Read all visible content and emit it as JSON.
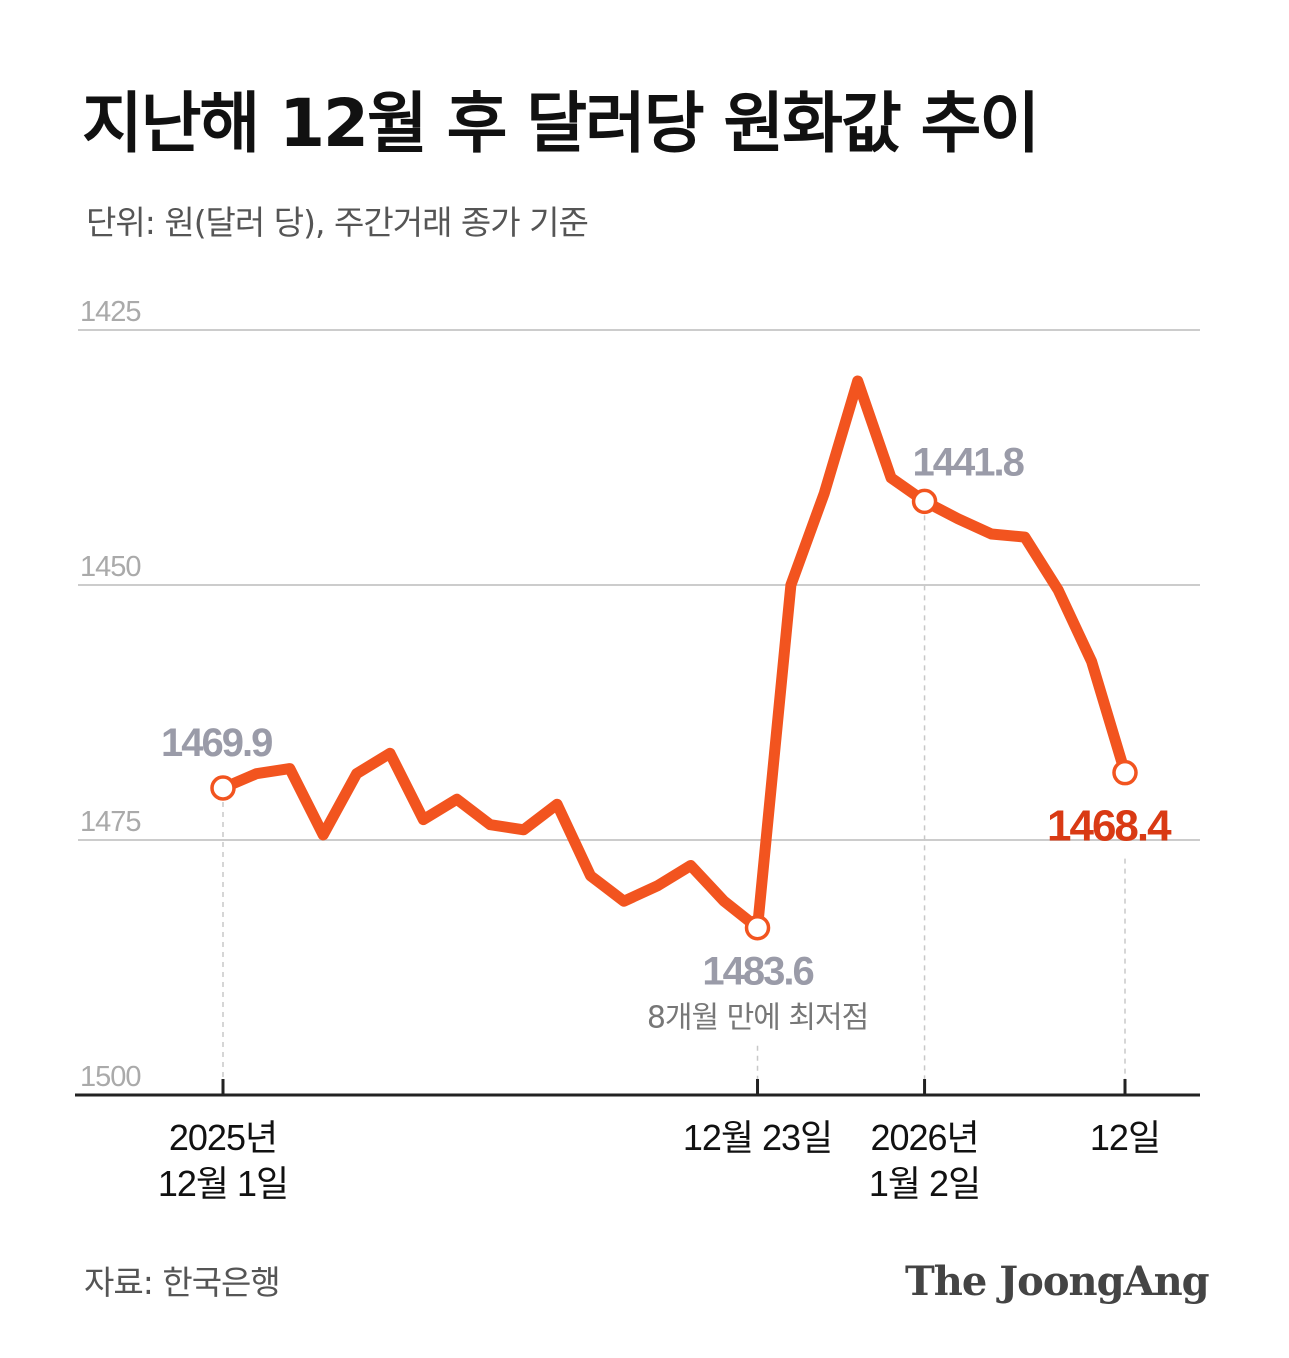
{
  "header": {
    "title": "지난해 12월 후 달러당 원화값 추이",
    "subtitle": "단위: 원(달러 당), 주간거래 종가 기준"
  },
  "footer": {
    "source": "자료: 한국은행",
    "brand": "The JoongAng"
  },
  "colors": {
    "line": "#f2541f",
    "highlight_label": "#d93a14",
    "muted_label": "#9a9ba8",
    "grid": "#cccccc",
    "axis": "#222222"
  },
  "chart_data": {
    "type": "line",
    "y_axis_inverted": true,
    "ylim": [
      1500,
      1425
    ],
    "yticks": [
      "1425",
      "1450",
      "1475",
      "1500"
    ],
    "grid": true,
    "x_tick_labels": [
      {
        "index": 0,
        "lines": [
          "2025년",
          "12월 1일"
        ]
      },
      {
        "index": 16,
        "lines": [
          "12월 23일"
        ]
      },
      {
        "index": 21,
        "lines": [
          "2026년",
          "1월 2일"
        ]
      },
      {
        "index": 27,
        "lines": [
          "12일"
        ]
      }
    ],
    "values": [
      1469.9,
      1468.5,
      1468.0,
      1474.5,
      1468.5,
      1466.5,
      1473.0,
      1471.0,
      1473.5,
      1474.0,
      1471.5,
      1478.5,
      1481.0,
      1479.5,
      1477.5,
      1481.0,
      1483.6,
      1450.0,
      1441.0,
      1430.0,
      1439.5,
      1441.8,
      1443.5,
      1445.0,
      1445.3,
      1450.5,
      1457.5,
      1468.4
    ],
    "annotations": [
      {
        "index": 0,
        "label": "1469.9",
        "note": "",
        "style": "muted"
      },
      {
        "index": 16,
        "label": "1483.6",
        "note": "8개월 만에 최저점",
        "style": "muted"
      },
      {
        "index": 21,
        "label": "1441.8",
        "note": "",
        "style": "muted"
      },
      {
        "index": 27,
        "label": "1468.4",
        "note": "",
        "style": "highlight"
      }
    ]
  }
}
